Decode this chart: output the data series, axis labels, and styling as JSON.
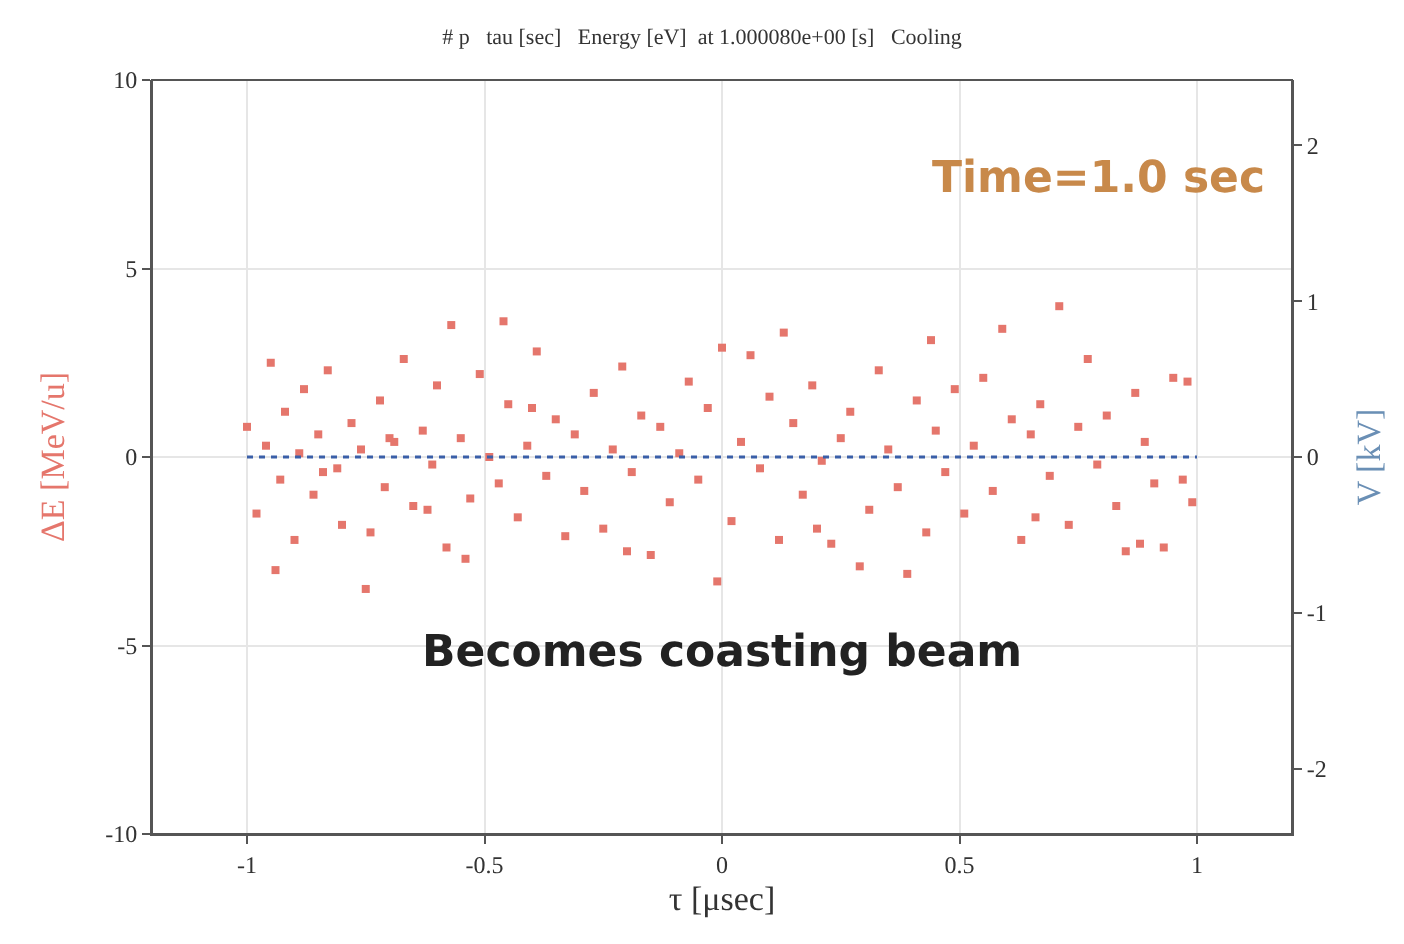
{
  "chart_data": {
    "type": "scatter",
    "title": "# p   tau [sec]   Energy [eV]  at 1.000080e+00 [s]   Cooling",
    "xlabel": "τ [μsec]",
    "ylabel": "ΔE [MeV/u]",
    "y2label": "V [kV]",
    "xlim": [
      -1.2,
      1.2
    ],
    "xticks": [
      -1,
      -0.5,
      0,
      0.5,
      1
    ],
    "ylim": [
      -10,
      10
    ],
    "yticks": [
      -10,
      -5,
      0,
      5,
      10
    ],
    "y2lim": [
      -2.42,
      2.42
    ],
    "y2ticks": [
      -2,
      -1,
      0,
      1,
      2
    ],
    "grid": true,
    "annotations": [
      "Time=1.0 sec",
      "Becomes coasting beam"
    ],
    "series": [
      {
        "color": "#e5766c",
        "marker": "square",
        "x": [
          -0.57,
          -0.46,
          0.71,
          0.59,
          0.13,
          -0.75,
          -0.94,
          -0.54,
          0.39,
          0.29,
          -0.01,
          0.85,
          0.93,
          0.99,
          0.98,
          -1.0,
          -0.98,
          -0.96,
          -0.95,
          -0.93,
          -0.92,
          -0.9,
          -0.89,
          -0.88,
          -0.86,
          -0.85,
          -0.83,
          -0.81,
          -0.8,
          -0.78,
          -0.76,
          -0.74,
          -0.72,
          -0.71,
          -0.69,
          -0.67,
          -0.65,
          -0.63,
          -0.61,
          -0.6,
          -0.58,
          -0.55,
          -0.53,
          -0.51,
          -0.49,
          -0.47,
          -0.45,
          -0.43,
          -0.41,
          -0.39,
          -0.37,
          -0.35,
          -0.33,
          -0.31,
          -0.29,
          -0.27,
          -0.25,
          -0.23,
          -0.21,
          -0.19,
          -0.17,
          -0.15,
          -0.13,
          -0.11,
          -0.09,
          -0.07,
          -0.05,
          -0.03,
          0.02,
          0.04,
          0.06,
          0.08,
          0.1,
          0.12,
          0.15,
          0.17,
          0.19,
          0.21,
          0.23,
          0.25,
          0.27,
          0.31,
          0.33,
          0.35,
          0.37,
          0.41,
          0.43,
          0.45,
          0.47,
          0.49,
          0.51,
          0.53,
          0.55,
          0.57,
          0.61,
          0.63,
          0.65,
          0.67,
          0.69,
          0.73,
          0.75,
          0.77,
          0.79,
          0.81,
          0.83,
          0.87,
          0.89,
          0.91,
          0.95,
          0.97,
          -0.84,
          -0.62,
          -0.4,
          -0.2,
          0.0,
          0.2,
          0.44,
          0.66,
          0.88,
          -0.7
        ],
        "values": [
          3.5,
          3.6,
          4.0,
          3.4,
          3.3,
          -3.5,
          -3.0,
          -2.7,
          -3.1,
          -2.9,
          -3.3,
          -2.5,
          -2.4,
          -1.2,
          2.0,
          0.8,
          -1.5,
          0.3,
          2.5,
          -0.6,
          1.2,
          -2.2,
          0.1,
          1.8,
          -1.0,
          0.6,
          2.3,
          -0.3,
          -1.8,
          0.9,
          0.2,
          -2.0,
          1.5,
          -0.8,
          0.4,
          2.6,
          -1.3,
          0.7,
          -0.2,
          1.9,
          -2.4,
          0.5,
          -1.1,
          2.2,
          0.0,
          -0.7,
          1.4,
          -1.6,
          0.3,
          2.8,
          -0.5,
          1.0,
          -2.1,
          0.6,
          -0.9,
          1.7,
          -1.9,
          0.2,
          2.4,
          -0.4,
          1.1,
          -2.6,
          0.8,
          -1.2,
          0.1,
          2.0,
          -0.6,
          1.3,
          -1.7,
          0.4,
          2.7,
          -0.3,
          1.6,
          -2.2,
          0.9,
          -1.0,
          1.9,
          -0.1,
          -2.3,
          0.5,
          1.2,
          -1.4,
          2.3,
          0.2,
          -0.8,
          1.5,
          -2.0,
          0.7,
          -0.4,
          1.8,
          -1.5,
          0.3,
          2.1,
          -0.9,
          1.0,
          -2.2,
          0.6,
          1.4,
          -0.5,
          -1.8,
          0.8,
          2.6,
          -0.2,
          1.1,
          -1.3,
          1.7,
          0.4,
          -0.7,
          2.1,
          -0.6,
          -0.4,
          -1.4,
          1.3,
          -2.5,
          2.9,
          -1.9,
          3.1,
          -1.6,
          -2.3,
          0.5
        ]
      },
      {
        "type": "line",
        "axis": "y2",
        "color": "#3a5fa8",
        "line_style": "dotted",
        "marker": "none",
        "x": [
          -1.0,
          -0.5,
          0.0,
          0.5,
          1.0
        ],
        "values": [
          0,
          0,
          0,
          0,
          0
        ]
      }
    ]
  }
}
